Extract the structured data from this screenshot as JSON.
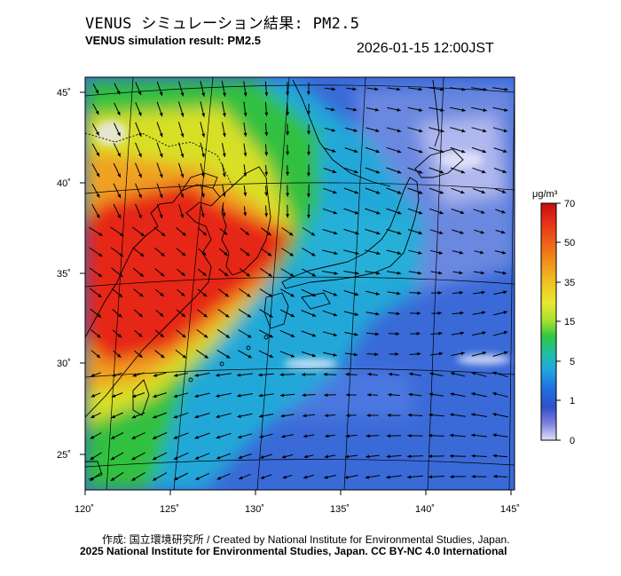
{
  "header": {
    "title_jp": "VENUS シミュレーション結果: PM2.5",
    "title_en": "VENUS simulation result: PM2.5",
    "timestamp": "2026-01-15 12:00JST"
  },
  "map": {
    "lon_ticks": [
      "120˚",
      "125˚",
      "130˚",
      "135˚",
      "140˚",
      "145˚"
    ],
    "lat_ticks": [
      "45˚",
      "40˚",
      "35˚",
      "30˚",
      "25˚"
    ],
    "variable": "PM2.5",
    "high_concentration_region": "Northeast China, Korea and Yellow Sea",
    "colors": {
      "very_high": "#e62818",
      "high": "#f0a020",
      "medium": "#e8e020",
      "low_medium": "#30c040",
      "low": "#20a8d8",
      "very_low": "#3060d0",
      "minimal": "#c8c8f0"
    }
  },
  "colorbar": {
    "unit": "μg/m³",
    "ticks": [
      "70",
      "50",
      "35",
      "15",
      "5",
      "1",
      "0"
    ],
    "stops": [
      "#c01010",
      "#e83018",
      "#f08018",
      "#f0c020",
      "#e8e830",
      "#a0e030",
      "#30c840",
      "#20c0a0",
      "#20a8e0",
      "#2070e0",
      "#3050c8",
      "#8080e0",
      "#e0e0f8"
    ]
  },
  "footer": {
    "credit_line_1": "作成: 国立環境研究所 / Created by National Institute for Environmental Studies, Japan.",
    "credit_line_2": "2025 National Institute for Environmental Studies, Japan. CC BY-NC 4.0 International"
  }
}
